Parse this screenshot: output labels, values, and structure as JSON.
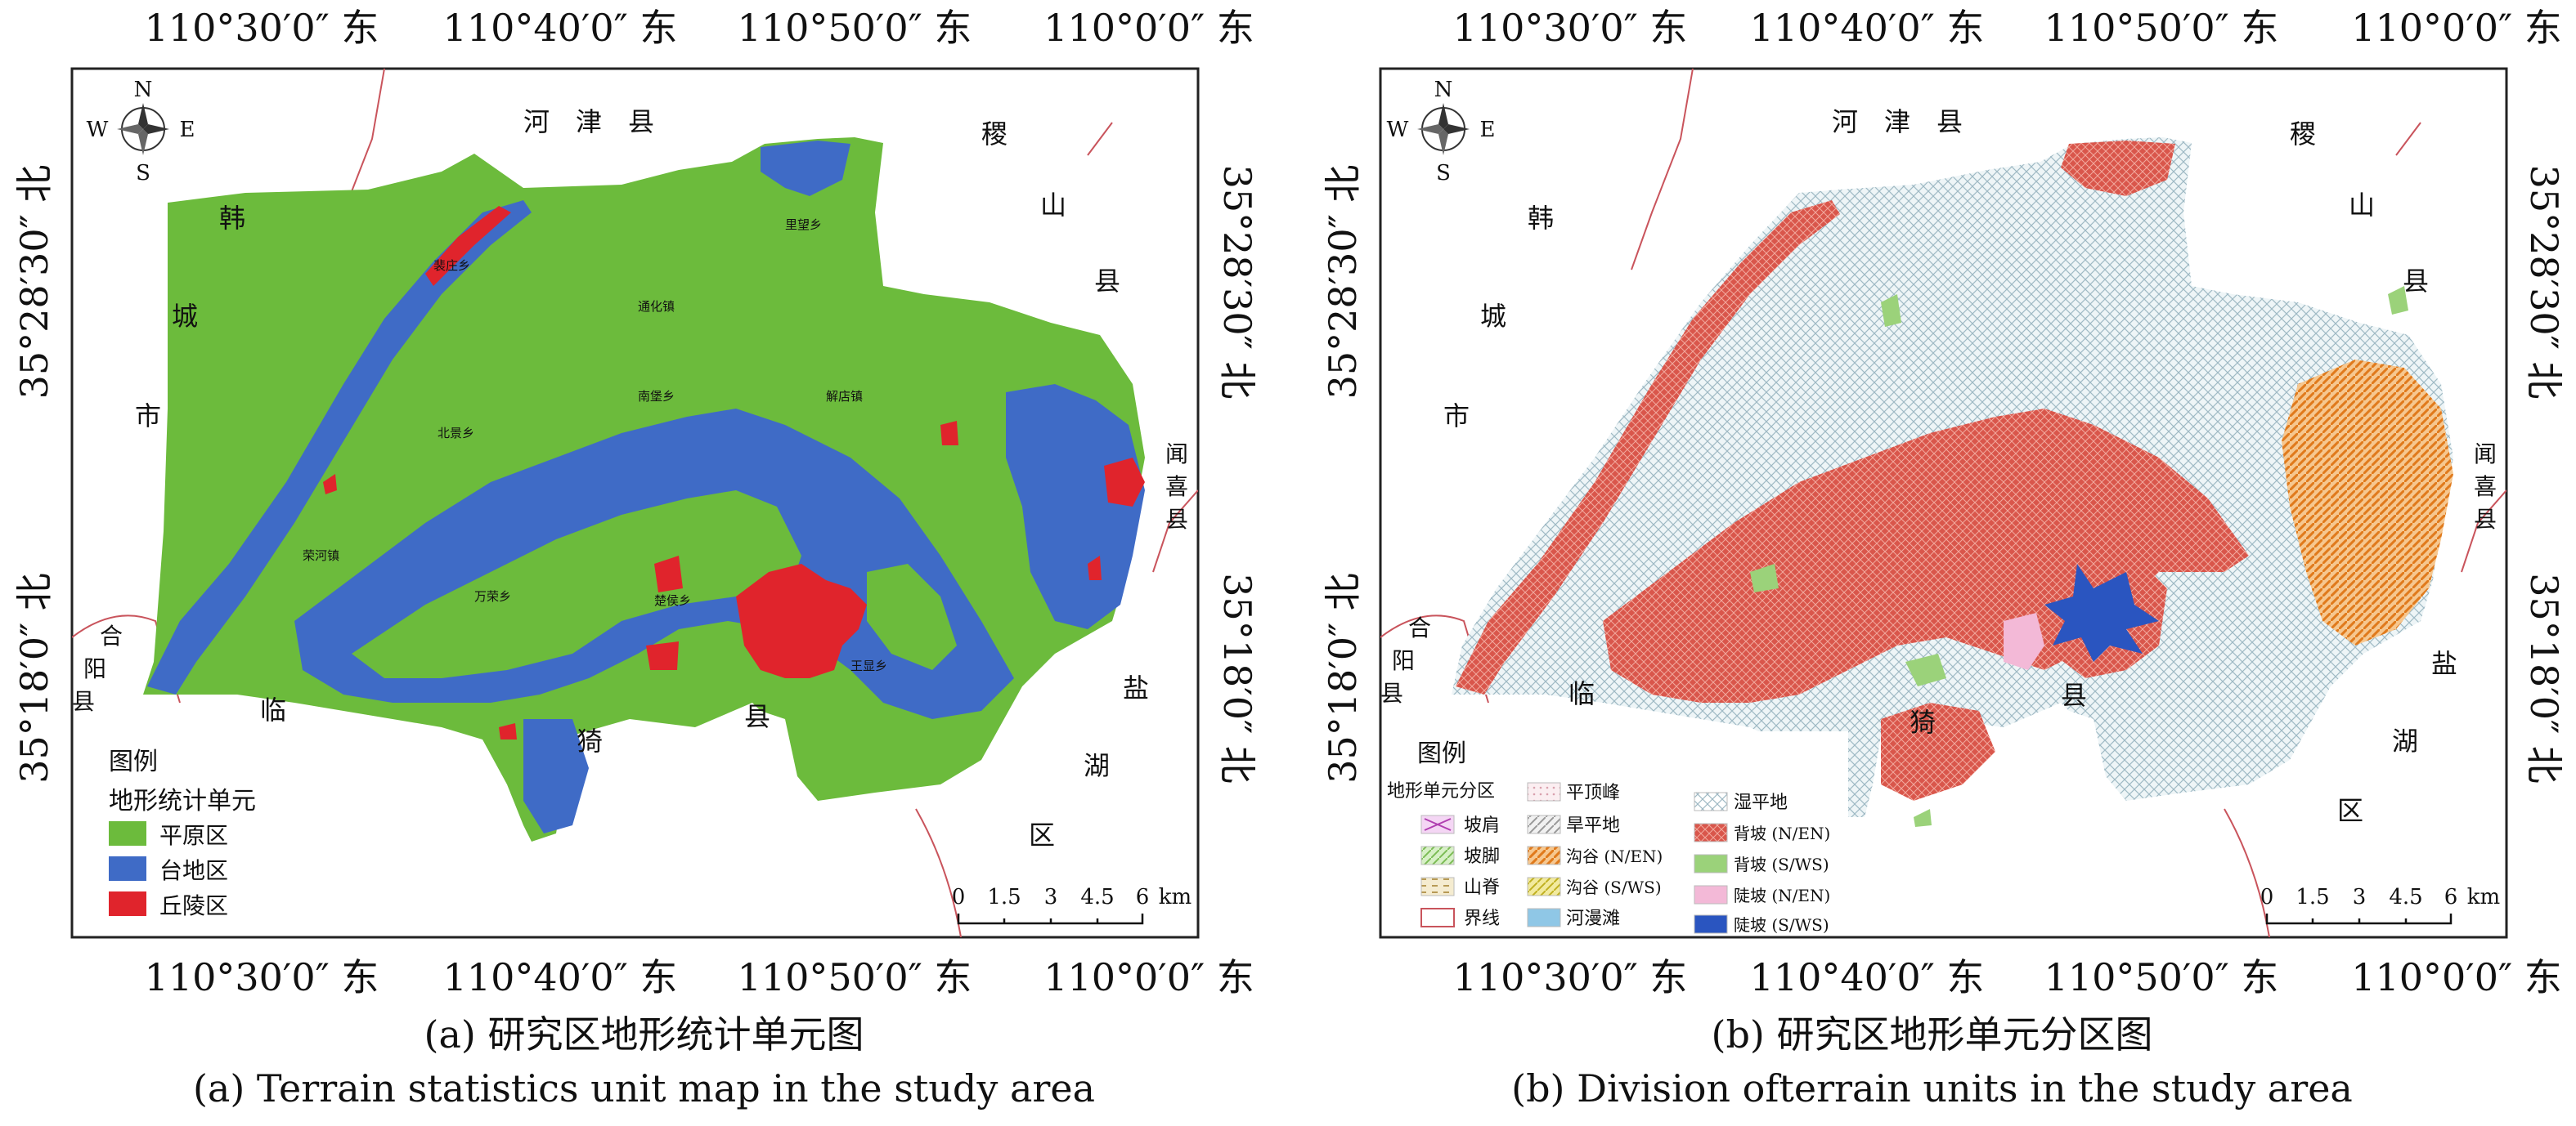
{
  "colors": {
    "plain": "#6cbb3c",
    "terrace": "#3f6bc6",
    "hill": "#e0242c",
    "wetland": "#d8e8ee",
    "back_slope_ne": "#d9564b",
    "gully_ne": "#e07a1c",
    "back_slope_sw": "#9bd27a",
    "steep_ne": "#f3b9d7",
    "steep_sw": "#2a55c0",
    "river": "#8fc7e6",
    "boundary": "#c9545c"
  },
  "panels": [
    {
      "caption_cn": "(a) 研究区地形统计单元图",
      "caption_en": "(a) Terrain statistics unit map in the study area",
      "lon_labels": [
        "110°30′0″ 东",
        "110°40′0″ 东",
        "110°50′0″ 东",
        "110°0′0″ 东"
      ],
      "lat_labels": [
        "35°28′30″ 北",
        "35°18′0″ 北"
      ],
      "compass": {
        "n": "N",
        "s": "S",
        "e": "E",
        "w": "W"
      },
      "place_names": [
        "河　津　县",
        "韩",
        "城",
        "市",
        "稷",
        "山",
        "县",
        "闻",
        "喜",
        "县",
        "合",
        "阳",
        "县",
        "临",
        "猗",
        "县",
        "盐",
        "湖",
        "区"
      ],
      "town_names": [
        "里望乡",
        "通化镇",
        "南堡乡",
        "解店镇",
        "楚侯乡",
        "北景乡",
        "荣河镇",
        "万荣乡",
        "王显乡",
        "裴庄乡"
      ],
      "legend": {
        "title": "图例",
        "subtitle": "地形统计单元",
        "items": [
          {
            "label": "平原区",
            "color": "#6cbb3c"
          },
          {
            "label": "台地区",
            "color": "#3f6bc6"
          },
          {
            "label": "丘陵区",
            "color": "#e0242c"
          }
        ]
      },
      "scale": {
        "ticks": [
          "0",
          "1.5",
          "3",
          "4.5",
          "6"
        ],
        "unit": "km"
      }
    },
    {
      "caption_cn": "(b) 研究区地形单元分区图",
      "caption_en": "(b) Division ofterrain units in the study area",
      "lon_labels": [
        "110°30′0″ 东",
        "110°40′0″ 东",
        "110°50′0″ 东",
        "110°0′0″ 东"
      ],
      "lat_labels": [
        "35°28′30″ 北",
        "35°18′0″ 北"
      ],
      "compass": {
        "n": "N",
        "s": "S",
        "e": "E",
        "w": "W"
      },
      "place_names": [
        "河　津　县",
        "韩",
        "城",
        "市",
        "稷",
        "山",
        "县",
        "闻",
        "喜",
        "县",
        "合",
        "阳",
        "县",
        "临",
        "猗",
        "县",
        "盐",
        "湖",
        "区"
      ],
      "legend": {
        "title": "图例",
        "subtitle": "地形单元分区",
        "items": [
          {
            "label": "平顶峰",
            "color": "#f4dfe4"
          },
          {
            "label": "湿平地",
            "color": "#d8e8ee"
          },
          {
            "label": "坡肩",
            "color": "#d68bd6"
          },
          {
            "label": "旱平地",
            "color": "#cfcfcf"
          },
          {
            "label": "背坡 (N/EN)",
            "color": "#d9564b"
          },
          {
            "label": "坡脚",
            "color": "#a6d98a"
          },
          {
            "label": "沟谷 (N/EN)",
            "color": "#e07a1c"
          },
          {
            "label": "背坡 (S/WS)",
            "color": "#9bd27a"
          },
          {
            "label": "山脊",
            "color": "#e9d9a6"
          },
          {
            "label": "沟谷 (S/WS)",
            "color": "#d4c22c"
          },
          {
            "label": "陡坡 (N/EN)",
            "color": "#f3b9d7"
          },
          {
            "label": "界线",
            "color": "#ffffff"
          },
          {
            "label": "河漫滩",
            "color": "#8fc7e6"
          },
          {
            "label": "陡坡 (S/WS)",
            "color": "#2a55c0"
          }
        ]
      },
      "scale": {
        "ticks": [
          "0",
          "1.5",
          "3",
          "4.5",
          "6"
        ],
        "unit": "km"
      }
    }
  ]
}
